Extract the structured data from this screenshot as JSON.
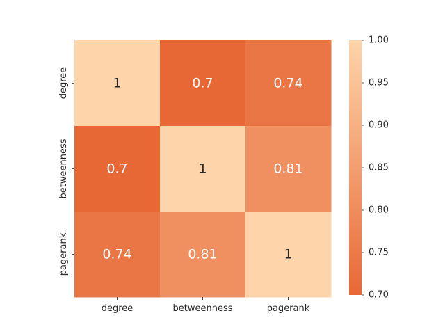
{
  "chart_data": {
    "type": "heatmap",
    "x_labels": [
      "degree",
      "betweenness",
      "pagerank"
    ],
    "y_labels": [
      "degree",
      "betweenness",
      "pagerank"
    ],
    "values": [
      [
        1,
        0.7,
        0.74
      ],
      [
        0.7,
        1,
        0.81
      ],
      [
        0.74,
        0.81,
        1
      ]
    ],
    "cell_labels": [
      [
        "1",
        "0.7",
        "0.74"
      ],
      [
        "0.7",
        "1",
        "0.81"
      ],
      [
        "0.74",
        "0.81",
        "1"
      ]
    ],
    "colorbar": {
      "min": 0.7,
      "max": 1.0,
      "ticks": [
        0.7,
        0.75,
        0.8,
        0.85,
        0.9,
        0.95,
        1.0
      ],
      "tick_labels": [
        "0.70",
        "0.75",
        "0.80",
        "0.85",
        "0.90",
        "0.95",
        "1.00"
      ],
      "color_low": "#E86835",
      "color_high": "#FED4AA"
    },
    "text_color_dark": "#262626",
    "text_color_light": "#ffffff",
    "title": "",
    "xlabel": "",
    "ylabel": "",
    "grid": false
  }
}
